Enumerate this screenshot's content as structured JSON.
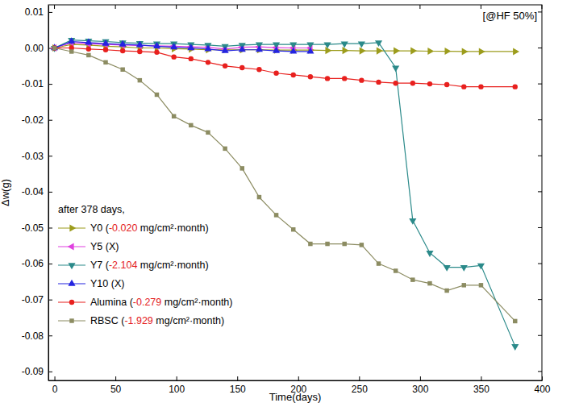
{
  "chart_data": {
    "type": "line",
    "annotation": "[@HF 50%]",
    "x_label": "Time(days)",
    "y_label": "Δw(g)",
    "legend_title": "after 378 days,",
    "legend": "lower left",
    "brackets": [
      "(",
      ")"
    ],
    "xlim": [
      -5,
      400
    ],
    "ylim": [
      -0.0925,
      0.012
    ],
    "xticks": [
      0,
      50,
      100,
      150,
      200,
      250,
      300,
      350,
      400
    ],
    "yticks": [
      {
        "value": 0.01,
        "label": "0.01"
      },
      {
        "value": 0,
        "label": "0.00"
      },
      {
        "value": -0.01,
        "label": "-0.01"
      },
      {
        "value": -0.02,
        "label": "-0.02"
      },
      {
        "value": -0.03,
        "label": "-0.03"
      },
      {
        "value": -0.04,
        "label": "-0.04"
      },
      {
        "value": -0.05,
        "label": "-0.05"
      },
      {
        "value": -0.06,
        "label": "-0.06"
      },
      {
        "value": -0.07,
        "label": "-0.07"
      },
      {
        "value": -0.08,
        "label": "-0.08"
      },
      {
        "value": -0.09,
        "label": "-0.09"
      }
    ],
    "x": [
      0,
      14,
      28,
      42,
      56,
      70,
      84,
      98,
      112,
      126,
      140,
      154,
      168,
      182,
      196,
      210,
      224,
      238,
      252,
      266,
      280,
      294,
      308,
      322,
      336,
      350,
      378
    ],
    "series": [
      {
        "name": "Y0",
        "rate": "-0.020",
        "unit": "mg/cm²·month",
        "color": "#9c9c1c",
        "marker": "triangle-right",
        "values": [
          0,
          0.001,
          0.0008,
          0.0005,
          0.0003,
          0,
          0,
          -0.0002,
          -0.0003,
          -0.0005,
          -0.0005,
          -0.0005,
          -0.0005,
          -0.0006,
          -0.0006,
          -0.0006,
          -0.0007,
          -0.0007,
          -0.0008,
          -0.0008,
          -0.0008,
          -0.0008,
          -0.0009,
          -0.0009,
          -0.001,
          -0.001,
          -0.001
        ]
      },
      {
        "name": "Y5",
        "rate": "X",
        "color": "#e040e0",
        "marker": "triangle-left",
        "values": [
          0,
          0.0015,
          0.0012,
          0.001,
          0.0008,
          0.0007,
          0.0006,
          0.0005,
          0.0003,
          0.0002,
          -0.0003,
          0.0002,
          0.0003,
          0.0001,
          0,
          0,
          null,
          null,
          null,
          null,
          null,
          null,
          null,
          null,
          null,
          null,
          null
        ]
      },
      {
        "name": "Y7",
        "rate": "-2.104",
        "unit": "mg/cm²·month",
        "color": "#2b8a8a",
        "marker": "triangle-down",
        "values": [
          0,
          0.0022,
          0.002,
          0.0018,
          0.0015,
          0.0013,
          0.0012,
          0.0012,
          0.001,
          0.0008,
          0.0005,
          0.0008,
          0.001,
          0.001,
          0.001,
          0.001,
          0.001,
          0.0012,
          0.0012,
          0.0015,
          -0.0055,
          -0.048,
          -0.057,
          -0.061,
          -0.061,
          -0.0605,
          -0.083
        ]
      },
      {
        "name": "Y10",
        "rate": "X",
        "color": "#2424e0",
        "marker": "triangle-up",
        "values": [
          0,
          0.0018,
          0.0015,
          0.0012,
          0.001,
          0.0008,
          0.0005,
          0.0002,
          0,
          -0.0003,
          -0.0008,
          -0.0005,
          -0.0005,
          -0.0008,
          -0.001,
          -0.001,
          null,
          null,
          null,
          null,
          null,
          null,
          null,
          null,
          null,
          null,
          null
        ]
      },
      {
        "name": "Alumina",
        "rate": "-0.279",
        "unit": "mg/cm²·month",
        "color": "#e8201e",
        "marker": "circle",
        "values": [
          0,
          0,
          -0.0003,
          -0.0005,
          -0.0008,
          -0.001,
          -0.0012,
          -0.0025,
          -0.003,
          -0.004,
          -0.005,
          -0.0055,
          -0.006,
          -0.007,
          -0.0075,
          -0.008,
          -0.0085,
          -0.0085,
          -0.009,
          -0.0095,
          -0.0098,
          -0.0098,
          -0.01,
          -0.0102,
          -0.0108,
          -0.0108,
          -0.0108
        ]
      },
      {
        "name": "RBSC",
        "rate": "-1.929",
        "unit": "mg/cm²·month",
        "color": "#8c8c62",
        "marker": "square",
        "values": [
          0,
          -0.001,
          -0.002,
          -0.004,
          -0.006,
          -0.009,
          -0.013,
          -0.019,
          -0.0215,
          -0.0235,
          -0.028,
          -0.0335,
          -0.0415,
          -0.0465,
          -0.0505,
          -0.0545,
          -0.0545,
          -0.0545,
          -0.0548,
          -0.06,
          -0.062,
          -0.0645,
          -0.0655,
          -0.0675,
          -0.066,
          -0.066,
          -0.076
        ]
      }
    ]
  }
}
